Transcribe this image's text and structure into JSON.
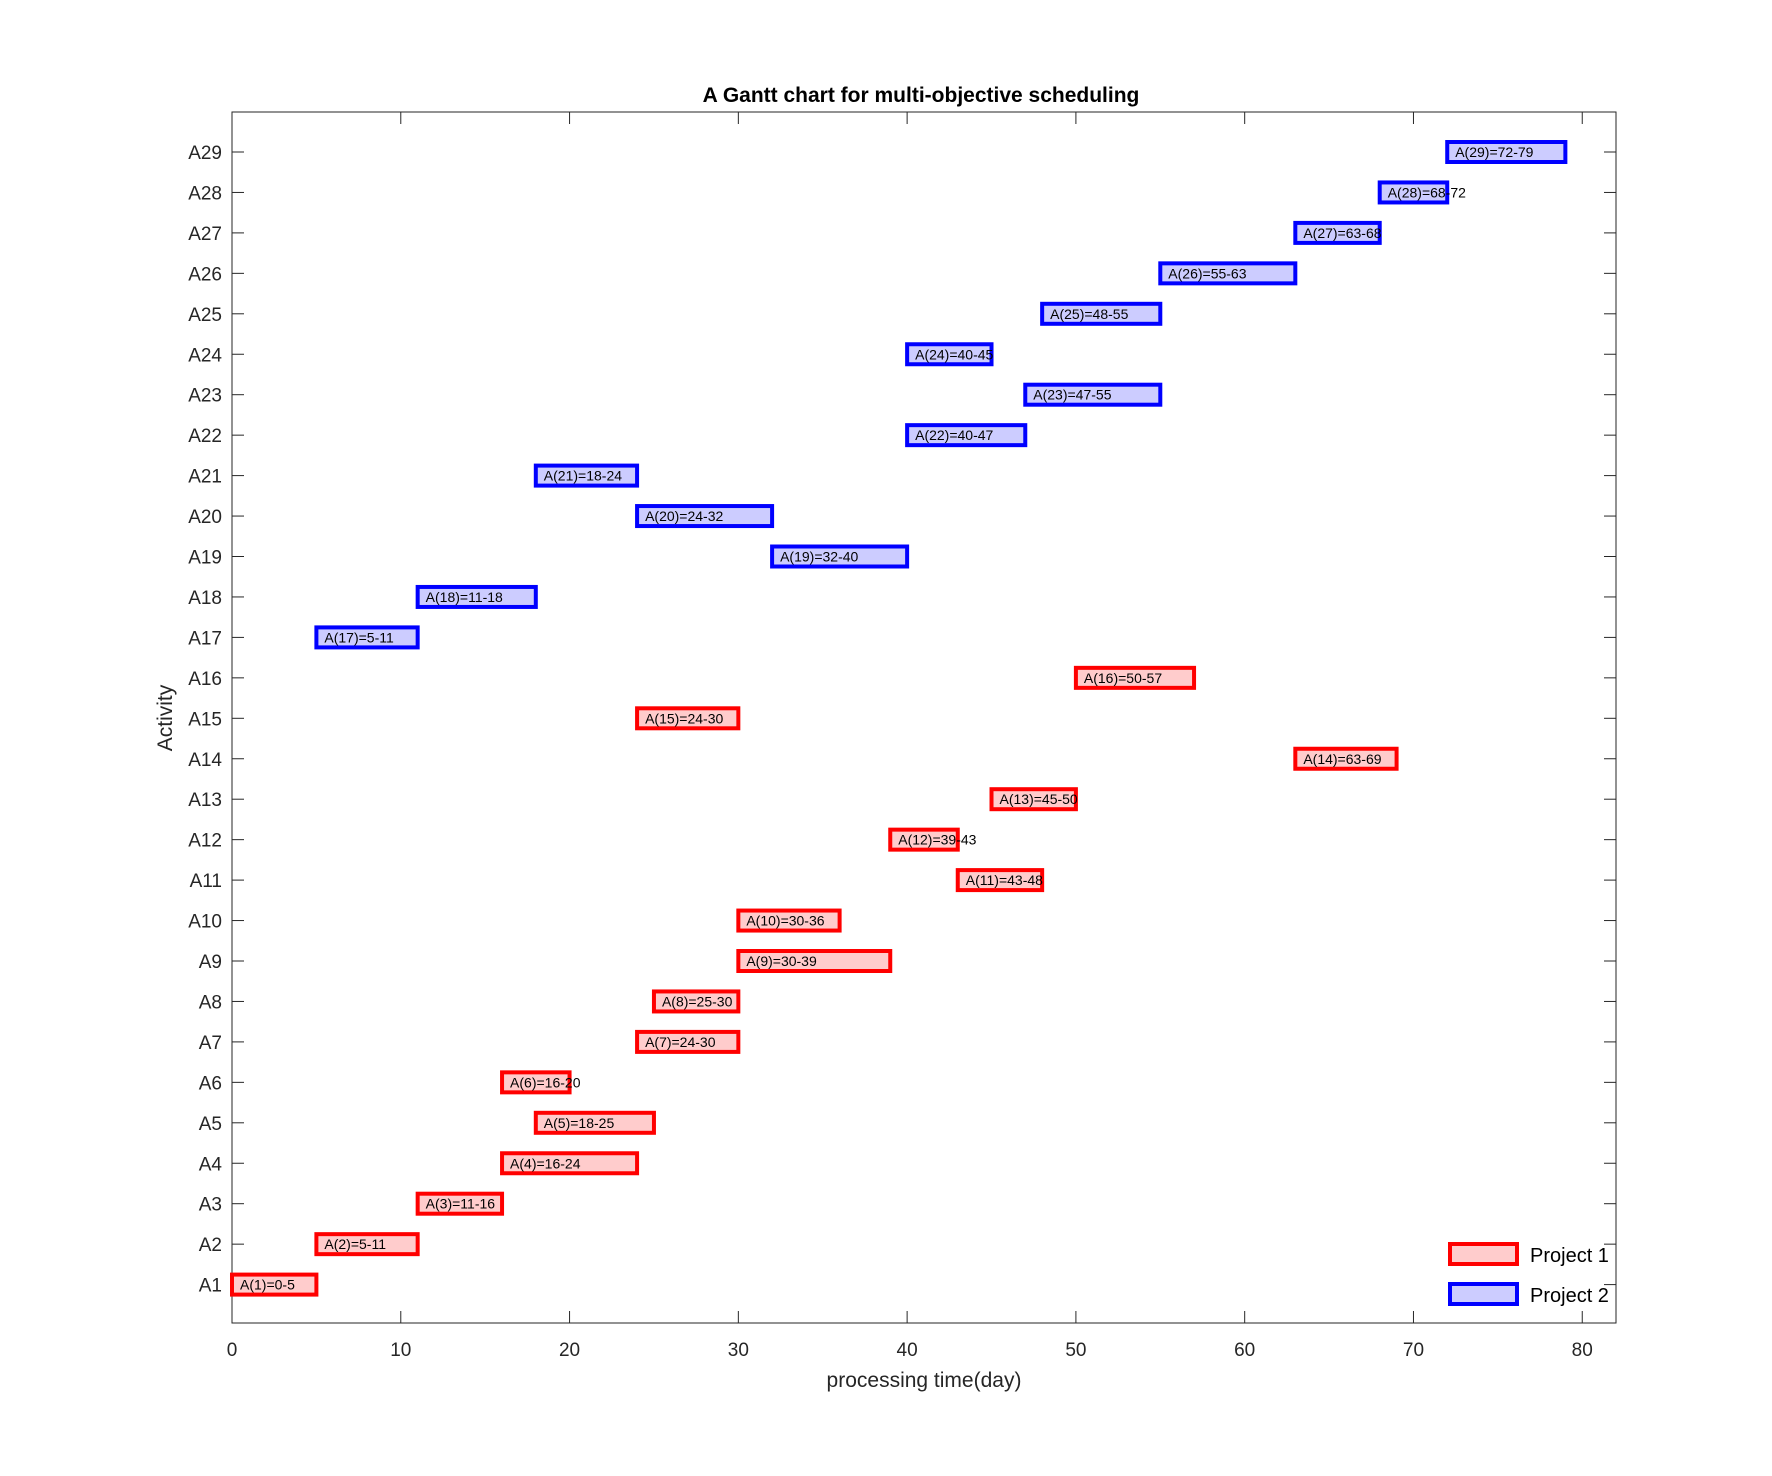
{
  "chart_data": {
    "type": "gantt",
    "title": "A Gantt chart for multi-objective scheduling",
    "xlabel": "processing time(day)",
    "ylabel": "Activity",
    "xlim": [
      0,
      82
    ],
    "xticks": [
      0,
      10,
      20,
      30,
      40,
      50,
      60,
      70,
      80
    ],
    "grid": false,
    "legend_position": "bottom-right",
    "series": [
      {
        "name": "Project 1",
        "edge_color": "#ff0000",
        "fill_color": "#ffcccc"
      },
      {
        "name": "Project 2",
        "edge_color": "#0000ff",
        "fill_color": "#ccccff"
      }
    ],
    "activities": [
      {
        "id": "A1",
        "label": "A(1)=0-5",
        "start": 0,
        "end": 5,
        "series": 0
      },
      {
        "id": "A2",
        "label": "A(2)=5-11",
        "start": 5,
        "end": 11,
        "series": 0
      },
      {
        "id": "A3",
        "label": "A(3)=11-16",
        "start": 11,
        "end": 16,
        "series": 0
      },
      {
        "id": "A4",
        "label": "A(4)=16-24",
        "start": 16,
        "end": 24,
        "series": 0
      },
      {
        "id": "A5",
        "label": "A(5)=18-25",
        "start": 18,
        "end": 25,
        "series": 0
      },
      {
        "id": "A6",
        "label": "A(6)=16-20",
        "start": 16,
        "end": 20,
        "series": 0
      },
      {
        "id": "A7",
        "label": "A(7)=24-30",
        "start": 24,
        "end": 30,
        "series": 0
      },
      {
        "id": "A8",
        "label": "A(8)=25-30",
        "start": 25,
        "end": 30,
        "series": 0
      },
      {
        "id": "A9",
        "label": "A(9)=30-39",
        "start": 30,
        "end": 39,
        "series": 0
      },
      {
        "id": "A10",
        "label": "A(10)=30-36",
        "start": 30,
        "end": 36,
        "series": 0
      },
      {
        "id": "A11",
        "label": "A(11)=43-48",
        "start": 43,
        "end": 48,
        "series": 0
      },
      {
        "id": "A12",
        "label": "A(12)=39-43",
        "start": 39,
        "end": 43,
        "series": 0
      },
      {
        "id": "A13",
        "label": "A(13)=45-50",
        "start": 45,
        "end": 50,
        "series": 0
      },
      {
        "id": "A14",
        "label": "A(14)=63-69",
        "start": 63,
        "end": 69,
        "series": 0
      },
      {
        "id": "A15",
        "label": "A(15)=24-30",
        "start": 24,
        "end": 30,
        "series": 0
      },
      {
        "id": "A16",
        "label": "A(16)=50-57",
        "start": 50,
        "end": 57,
        "series": 0
      },
      {
        "id": "A17",
        "label": "A(17)=5-11",
        "start": 5,
        "end": 11,
        "series": 1
      },
      {
        "id": "A18",
        "label": "A(18)=11-18",
        "start": 11,
        "end": 18,
        "series": 1
      },
      {
        "id": "A19",
        "label": "A(19)=32-40",
        "start": 32,
        "end": 40,
        "series": 1
      },
      {
        "id": "A20",
        "label": "A(20)=24-32",
        "start": 24,
        "end": 32,
        "series": 1
      },
      {
        "id": "A21",
        "label": "A(21)=18-24",
        "start": 18,
        "end": 24,
        "series": 1
      },
      {
        "id": "A22",
        "label": "A(22)=40-47",
        "start": 40,
        "end": 47,
        "series": 1
      },
      {
        "id": "A23",
        "label": "A(23)=47-55",
        "start": 47,
        "end": 55,
        "series": 1
      },
      {
        "id": "A24",
        "label": "A(24)=40-45",
        "start": 40,
        "end": 45,
        "series": 1
      },
      {
        "id": "A25",
        "label": "A(25)=48-55",
        "start": 48,
        "end": 55,
        "series": 1
      },
      {
        "id": "A26",
        "label": "A(26)=55-63",
        "start": 55,
        "end": 63,
        "series": 1
      },
      {
        "id": "A27",
        "label": "A(27)=63-68",
        "start": 63,
        "end": 68,
        "series": 1
      },
      {
        "id": "A28",
        "label": "A(28)=68-72",
        "start": 68,
        "end": 72,
        "series": 1
      },
      {
        "id": "A29",
        "label": "A(29)=72-79",
        "start": 72,
        "end": 79,
        "series": 1
      }
    ]
  }
}
